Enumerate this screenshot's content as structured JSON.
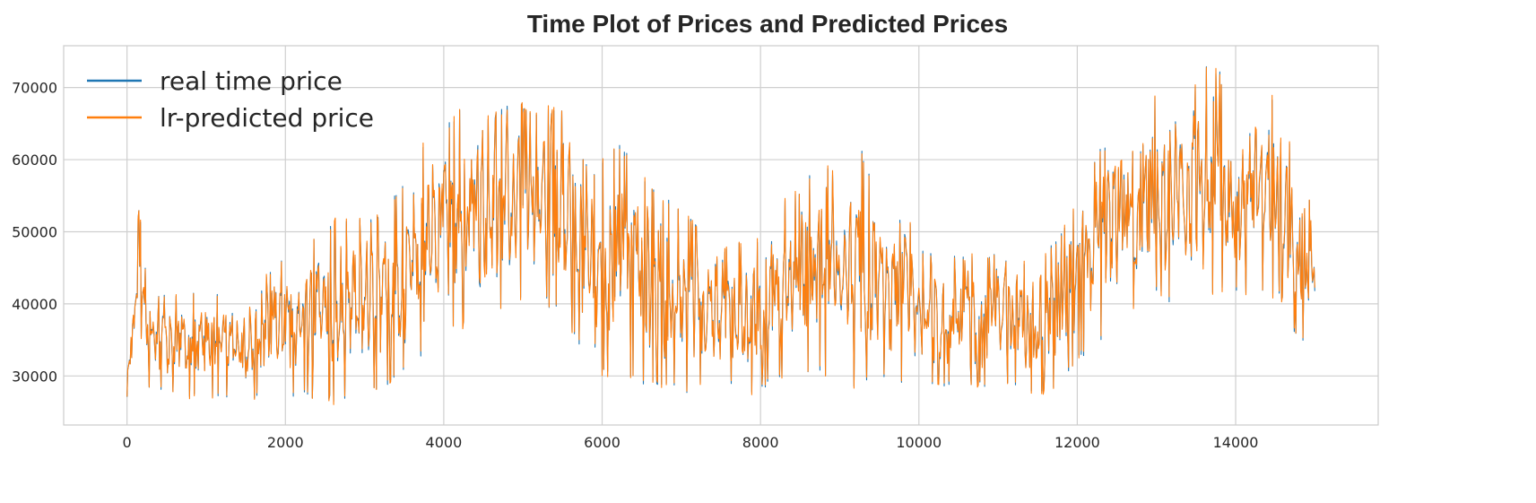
{
  "chart_data": {
    "type": "line",
    "title": "Time Plot of Prices and Predicted Prices",
    "xlabel": "",
    "ylabel": "",
    "xlim": [
      -800,
      15800
    ],
    "ylim": [
      23200,
      75800
    ],
    "xticks": [
      0,
      2000,
      4000,
      6000,
      8000,
      10000,
      12000,
      14000
    ],
    "xtick_labels": [
      "0",
      "2000",
      "4000",
      "6000",
      "8000",
      "10000",
      "12000",
      "14000"
    ],
    "yticks": [
      30000,
      40000,
      50000,
      60000,
      70000
    ],
    "ytick_labels": [
      "30000",
      "40000",
      "50000",
      "60000",
      "70000"
    ],
    "grid": true,
    "legend_position": "top-left",
    "n_points": 15000,
    "series": [
      {
        "name": "real time price",
        "color": "#1f77b4"
      },
      {
        "name": "lr-predicted price",
        "color": "#ff7f0e"
      }
    ],
    "envelope_x": [
      0,
      100,
      150,
      250,
      500,
      1000,
      1500,
      2000,
      2500,
      2700,
      3000,
      3300,
      3600,
      4000,
      4200,
      4500,
      4900,
      5200,
      5500,
      5700,
      5900,
      6200,
      6500,
      7000,
      7500,
      8000,
      8200,
      8500,
      8800,
      9000,
      9200,
      9500,
      9800,
      10000,
      10500,
      11000,
      11500,
      11800,
      12000,
      12300,
      12600,
      13000,
      13300,
      13600,
      13800,
      14000,
      14300,
      14600,
      14800,
      15000
    ],
    "envelope_low": [
      27000,
      33000,
      38000,
      28000,
      27500,
      26500,
      26500,
      27000,
      26500,
      26000,
      27000,
      28500,
      31000,
      36000,
      37000,
      36000,
      39500,
      40000,
      38500,
      34000,
      29500,
      30000,
      28500,
      27500,
      28500,
      27500,
      29000,
      30500,
      29500,
      28000,
      28500,
      29000,
      29000,
      28500,
      28500,
      28500,
      27500,
      28500,
      32000,
      34500,
      38500,
      40500,
      40000,
      40000,
      41500,
      41000,
      41500,
      40000,
      34000,
      36000
    ],
    "envelope_high": [
      30000,
      44000,
      59000,
      42000,
      41500,
      42000,
      42000,
      47000,
      50000,
      52500,
      52000,
      54000,
      60000,
      65000,
      67000,
      65000,
      69000,
      67000,
      67000,
      62000,
      58000,
      63000,
      58000,
      53000,
      48000,
      49000,
      54000,
      56000,
      62000,
      55000,
      65500,
      53000,
      55000,
      48000,
      46500,
      47000,
      46000,
      50000,
      55000,
      62000,
      67000,
      69000,
      69500,
      73000,
      72500,
      66000,
      69000,
      69000,
      52000,
      56000
    ]
  }
}
